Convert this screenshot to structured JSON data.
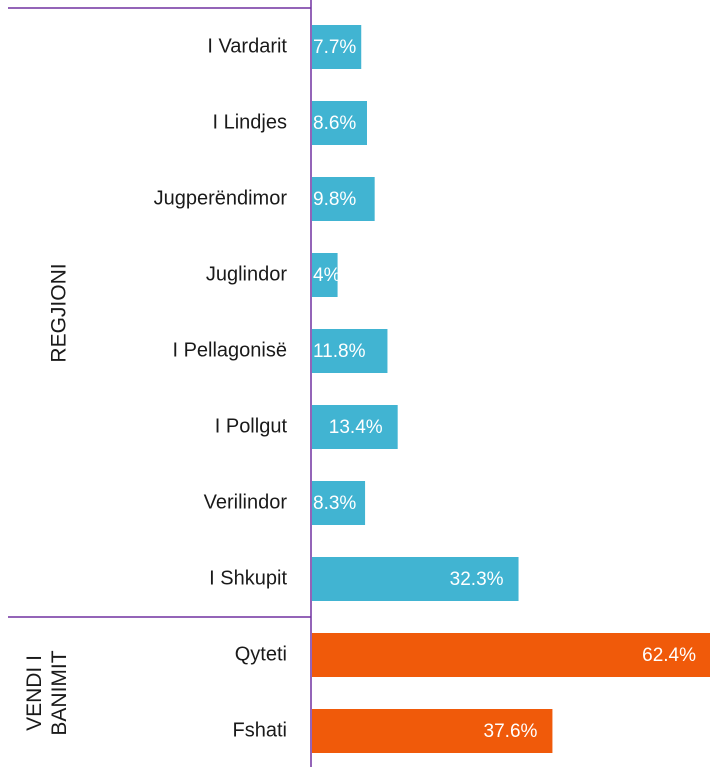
{
  "chart_data": {
    "type": "bar",
    "orientation": "horizontal",
    "groups": [
      {
        "name": "REGJIONI",
        "color": "#41b4d2",
        "categories": [
          "I Vardarit",
          "I Lindjes",
          "Jugperëndimor",
          "Juglindor",
          "I Pellagonisë",
          "I Pollgut",
          "Verilindor",
          "I Shkupit"
        ],
        "values": [
          7.7,
          8.6,
          9.8,
          4,
          11.8,
          13.4,
          8.3,
          32.3
        ],
        "value_labels": [
          "7.7%",
          "8.6%",
          "9.8%",
          "4%",
          "11.8%",
          "13.4%",
          "8.3%",
          "32.3%"
        ]
      },
      {
        "name": "VENDI I BANIMIT",
        "color": "#f05a0a",
        "categories": [
          "Qyteti",
          "Fshati"
        ],
        "values": [
          62.4,
          37.6
        ],
        "value_labels": [
          "62.4%",
          "37.6%"
        ]
      }
    ]
  }
}
